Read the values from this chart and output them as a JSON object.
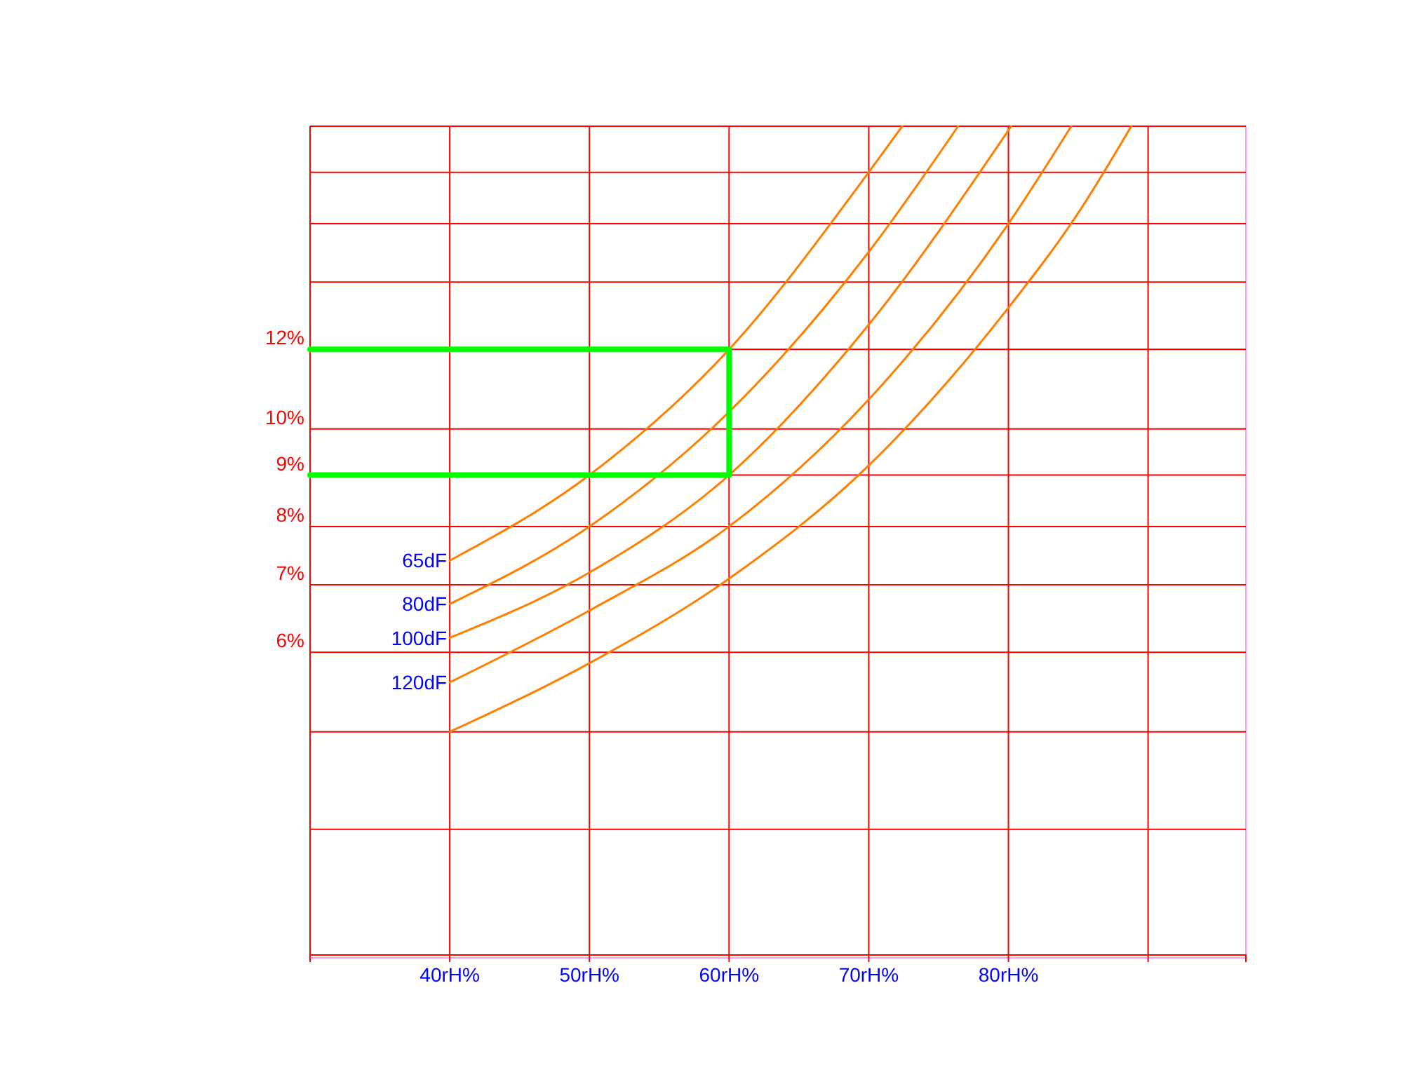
{
  "chart_data": {
    "type": "line",
    "log": "y",
    "grid": true,
    "legend": false,
    "marker": "none",
    "xlim": [
      30,
      97
    ],
    "xticks": [
      {
        "value": 30,
        "label": null
      },
      {
        "value": 40,
        "label": "40rH%"
      },
      {
        "value": 50,
        "label": "50rH%"
      },
      {
        "value": 60,
        "label": "60rH%"
      },
      {
        "value": 70,
        "label": "70rH%"
      },
      {
        "value": 80,
        "label": "80rH%"
      },
      {
        "value": 90,
        "label": null
      }
    ],
    "ylim": [
      3,
      20
    ],
    "yticks": [
      {
        "value": 3,
        "label": null
      },
      {
        "value": 4,
        "label": null
      },
      {
        "value": 5,
        "label": null
      },
      {
        "value": 6,
        "label": "6%"
      },
      {
        "value": 7,
        "label": "7%"
      },
      {
        "value": 8,
        "label": "8%"
      },
      {
        "value": 9,
        "label": "9%"
      },
      {
        "value": 10,
        "label": "10%"
      },
      {
        "value": 12,
        "label": "12%"
      },
      {
        "value": 14,
        "label": null
      },
      {
        "value": 16,
        "label": null
      },
      {
        "value": 18,
        "label": null
      },
      {
        "value": 20,
        "label": null
      }
    ],
    "series": [
      {
        "name": "65dF",
        "color": "#ff8000",
        "x": [
          40,
          50,
          60,
          70,
          72.4
        ],
        "values": [
          7.4,
          9,
          12,
          18,
          20
        ]
      },
      {
        "name": "80dF",
        "color": "#ff8000",
        "x": [
          40,
          50,
          60,
          70,
          76.4
        ],
        "values": [
          6.7,
          8,
          10.4,
          15,
          20
        ]
      },
      {
        "name": "100dF",
        "color": "#ff8000",
        "x": [
          40,
          50,
          60,
          70,
          80.2
        ],
        "values": [
          6.2,
          7.2,
          9,
          12.7,
          20
        ]
      },
      {
        "name": "120dF",
        "color": "#ff8000",
        "x": [
          40,
          50,
          60,
          70,
          80,
          84.5
        ],
        "values": [
          5.6,
          6.6,
          8,
          10.7,
          16,
          20
        ]
      },
      {
        "color": "#ff8000",
        "x": [
          40,
          50,
          60,
          70,
          80,
          85,
          88.8
        ],
        "values": [
          5,
          5.85,
          7.1,
          9.2,
          13.2,
          16.4,
          20
        ]
      },
      {
        "color": "#00ff00",
        "x": [
          30,
          60,
          60,
          30
        ],
        "values": [
          12,
          12,
          9,
          9
        ]
      }
    ]
  }
}
